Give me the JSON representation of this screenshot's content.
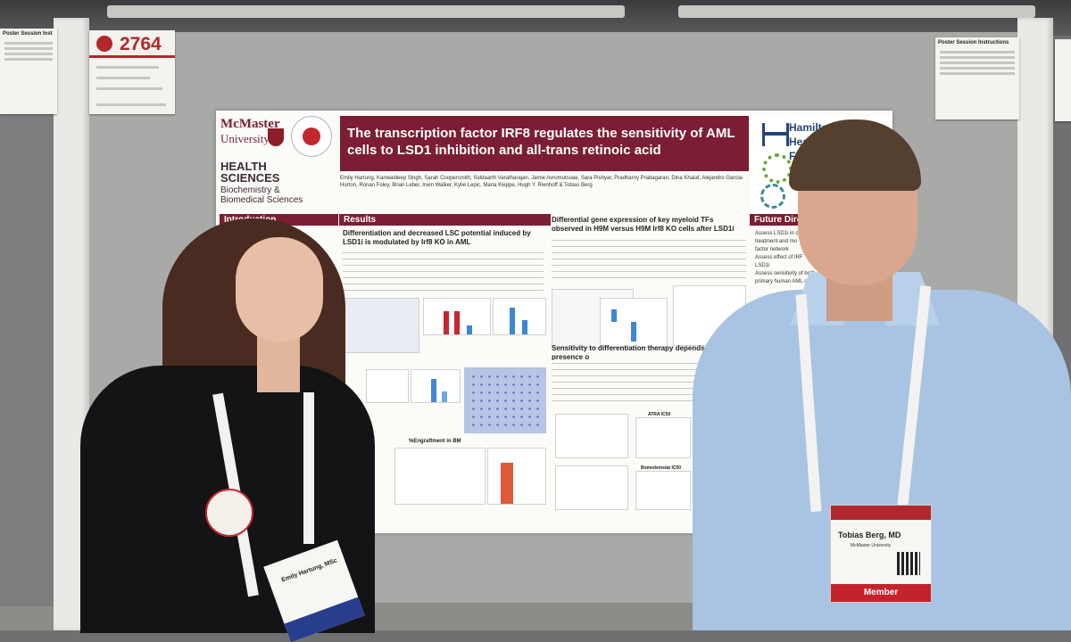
{
  "poster_number": "2764",
  "left_card": {
    "title": "Poster Session Inst"
  },
  "right_card": {
    "title": "Poster Session Instructions"
  },
  "poster": {
    "logo_line1": "McMaster",
    "logo_line2": "University",
    "faculty_line1": "HEALTH",
    "faculty_line2": "SCIENCES",
    "faculty_dept1": "Biochemistry &",
    "faculty_dept2": "Biomedical Sciences",
    "title": "The transcription factor IRF8 regulates the sensitivity of AML cells to LSD1 inhibition and all-trans retinoic acid",
    "authors": "Emily Hartung, Kanwaldeep Singh, Sarah Coopersmith, Siddaarth Varatharajan, Jamie Avrumutsoae, Sara Pishyar, Pradharny Prabagaran, Dina Khalaf, Alejandro Garcia-Horton, Ronan Foley, Brian Leber, Irwin Walker, Kylie Lepic, Maria Kleppe, Hugh Y. Rienhoff & Tobias Berg",
    "hamilton_1": "Hamilto",
    "hamilton_2": "Healt",
    "hamilton_3": "Fo",
    "sections": {
      "introduction": "Introduction",
      "results": "Results",
      "future": "Future Dire"
    },
    "results_heading": "Differentiation and decreased LSC potential induced by LSD1i is modulated by Irf8 KO in AML",
    "diff_heading": "Differential gene expression of key myeloid TFs observed in H9M versus H9M Irf8 KO cells after LSD1i",
    "sens_heading": "Sensitivity to differentiation therapy depends on the presence o",
    "engraft_label": "%Engraftment in BM",
    "atra_label": "ATRA IC50",
    "bomed_label": "Bomedemstat IC50",
    "future_items": [
      "Assess LSD1i in c",
      "treatment and mo",
      "factor network",
      "Assess effect of IRF",
      "LSD1i",
      "Assess sensitivity of both",
      "primary human AML sam"
    ]
  },
  "badge_left": {
    "name": "Emily Hartung, MSc"
  },
  "badge_right": {
    "name": "Tobias Berg, MD",
    "org": "McMaster University",
    "member": "Member"
  }
}
